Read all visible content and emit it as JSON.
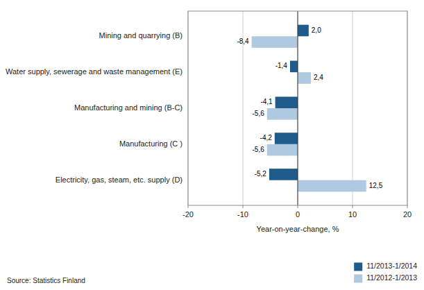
{
  "chart_data": {
    "type": "bar",
    "orientation": "horizontal",
    "categories": [
      "Electricity, gas, steam, etc. supply  (D)",
      "Manufacturing (C )",
      "Manufacturing and mining (B-C)",
      "Water supply, sewerage and waste management (E)",
      "Mining and quarrying (B)"
    ],
    "series": [
      {
        "name": "11/2013-1/2014",
        "color": "#1F5C8B",
        "values": [
          -5.2,
          -4.2,
          -4.1,
          -1.4,
          2.0
        ],
        "value_labels": [
          "-5,2",
          "-4,2",
          "-4,1",
          "-1,4",
          "2,0"
        ]
      },
      {
        "name": "11/2012-1/2013",
        "color": "#AFC9E1",
        "values": [
          12.5,
          -5.6,
          -5.6,
          2.4,
          -8.4
        ],
        "value_labels": [
          "12,5",
          "-5,6",
          "-5,6",
          "2,4",
          "-8,4"
        ]
      }
    ],
    "xlabel": "Year-on-year-change, %",
    "xlim": [
      -20,
      20
    ],
    "xticks": [
      -20,
      -10,
      0,
      10,
      20
    ],
    "grid": true,
    "data_labels": true,
    "legend": "lower right",
    "annotations": [
      {
        "text": "Source: Statistics Finland"
      }
    ]
  }
}
